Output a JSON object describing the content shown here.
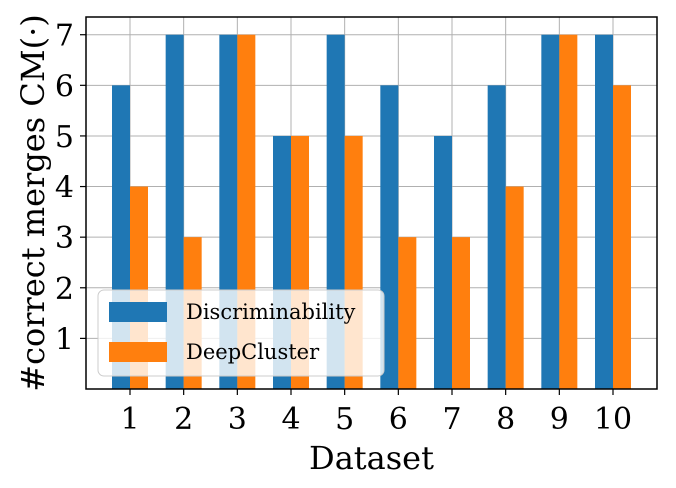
{
  "chart_data": {
    "type": "bar",
    "categories": [
      "1",
      "2",
      "3",
      "4",
      "5",
      "6",
      "7",
      "8",
      "9",
      "10"
    ],
    "series": [
      {
        "name": "Discriminability",
        "color": "#1f77b4",
        "values": [
          6,
          7,
          7,
          5,
          7,
          6,
          5,
          6,
          7,
          7
        ]
      },
      {
        "name": "DeepCluster",
        "color": "#ff7f0e",
        "values": [
          4,
          3,
          7,
          5,
          5,
          3,
          3,
          4,
          7,
          6
        ]
      }
    ],
    "xlabel": "Dataset",
    "ylabel": "#correct merges CM(·)",
    "yticks": [
      "1",
      "2",
      "3",
      "4",
      "5",
      "6",
      "7"
    ],
    "ylim": [
      0,
      7.35
    ],
    "grid": true,
    "legend_position": "lower-left"
  }
}
